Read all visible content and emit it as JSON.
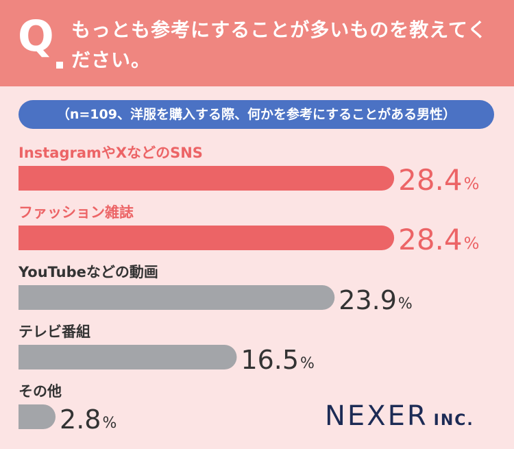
{
  "header": {
    "q_mark": "Q",
    "question": "もっとも参考にすることが多いものを教えてください。",
    "background": "#ef8680"
  },
  "subtitle": "（n=109、洋服を購入する際、何かを参考にすることがある男性）",
  "brand": {
    "name": "NEXER",
    "suffix": "INC."
  },
  "chart_data": {
    "type": "bar",
    "orientation": "horizontal",
    "unit": "%",
    "xlim": [
      0,
      100
    ],
    "categories": [
      "InstagramやXなどのSNS",
      "ファッション雑誌",
      "YouTubeなどの動画",
      "テレビ番組",
      "その他"
    ],
    "values": [
      28.4,
      28.4,
      23.9,
      16.5,
      2.8
    ],
    "value_labels": [
      "28.4",
      "28.4",
      "23.9",
      "16.5",
      "2.8"
    ],
    "highlight_color": "#ec6466",
    "default_color": "#a3a5a9",
    "highlighted": [
      true,
      true,
      false,
      false,
      false
    ]
  }
}
